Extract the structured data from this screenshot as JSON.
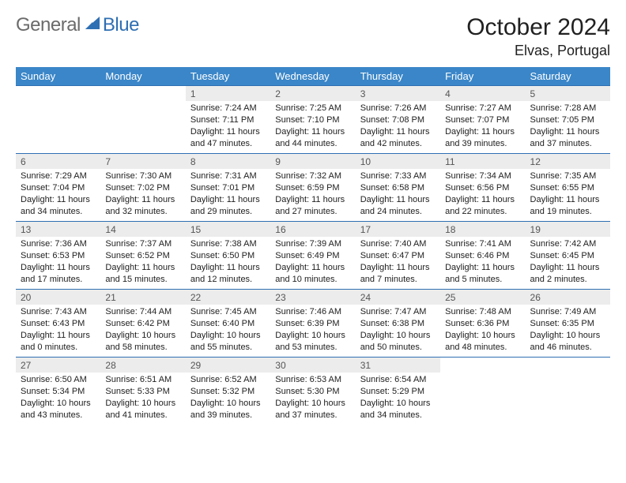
{
  "logo": {
    "text_general": "General",
    "text_blue": "Blue"
  },
  "title": "October 2024",
  "location": "Elvas, Portugal",
  "header_bg": "#3a86c8",
  "header_fg": "#ffffff",
  "row_border": "#2f6fb3",
  "daynum_bg": "#ececec",
  "columns": [
    "Sunday",
    "Monday",
    "Tuesday",
    "Wednesday",
    "Thursday",
    "Friday",
    "Saturday"
  ],
  "weeks": [
    [
      null,
      null,
      {
        "n": "1",
        "sunrise": "7:24 AM",
        "sunset": "7:11 PM",
        "daylight": "11 hours and 47 minutes."
      },
      {
        "n": "2",
        "sunrise": "7:25 AM",
        "sunset": "7:10 PM",
        "daylight": "11 hours and 44 minutes."
      },
      {
        "n": "3",
        "sunrise": "7:26 AM",
        "sunset": "7:08 PM",
        "daylight": "11 hours and 42 minutes."
      },
      {
        "n": "4",
        "sunrise": "7:27 AM",
        "sunset": "7:07 PM",
        "daylight": "11 hours and 39 minutes."
      },
      {
        "n": "5",
        "sunrise": "7:28 AM",
        "sunset": "7:05 PM",
        "daylight": "11 hours and 37 minutes."
      }
    ],
    [
      {
        "n": "6",
        "sunrise": "7:29 AM",
        "sunset": "7:04 PM",
        "daylight": "11 hours and 34 minutes."
      },
      {
        "n": "7",
        "sunrise": "7:30 AM",
        "sunset": "7:02 PM",
        "daylight": "11 hours and 32 minutes."
      },
      {
        "n": "8",
        "sunrise": "7:31 AM",
        "sunset": "7:01 PM",
        "daylight": "11 hours and 29 minutes."
      },
      {
        "n": "9",
        "sunrise": "7:32 AM",
        "sunset": "6:59 PM",
        "daylight": "11 hours and 27 minutes."
      },
      {
        "n": "10",
        "sunrise": "7:33 AM",
        "sunset": "6:58 PM",
        "daylight": "11 hours and 24 minutes."
      },
      {
        "n": "11",
        "sunrise": "7:34 AM",
        "sunset": "6:56 PM",
        "daylight": "11 hours and 22 minutes."
      },
      {
        "n": "12",
        "sunrise": "7:35 AM",
        "sunset": "6:55 PM",
        "daylight": "11 hours and 19 minutes."
      }
    ],
    [
      {
        "n": "13",
        "sunrise": "7:36 AM",
        "sunset": "6:53 PM",
        "daylight": "11 hours and 17 minutes."
      },
      {
        "n": "14",
        "sunrise": "7:37 AM",
        "sunset": "6:52 PM",
        "daylight": "11 hours and 15 minutes."
      },
      {
        "n": "15",
        "sunrise": "7:38 AM",
        "sunset": "6:50 PM",
        "daylight": "11 hours and 12 minutes."
      },
      {
        "n": "16",
        "sunrise": "7:39 AM",
        "sunset": "6:49 PM",
        "daylight": "11 hours and 10 minutes."
      },
      {
        "n": "17",
        "sunrise": "7:40 AM",
        "sunset": "6:47 PM",
        "daylight": "11 hours and 7 minutes."
      },
      {
        "n": "18",
        "sunrise": "7:41 AM",
        "sunset": "6:46 PM",
        "daylight": "11 hours and 5 minutes."
      },
      {
        "n": "19",
        "sunrise": "7:42 AM",
        "sunset": "6:45 PM",
        "daylight": "11 hours and 2 minutes."
      }
    ],
    [
      {
        "n": "20",
        "sunrise": "7:43 AM",
        "sunset": "6:43 PM",
        "daylight": "11 hours and 0 minutes."
      },
      {
        "n": "21",
        "sunrise": "7:44 AM",
        "sunset": "6:42 PM",
        "daylight": "10 hours and 58 minutes."
      },
      {
        "n": "22",
        "sunrise": "7:45 AM",
        "sunset": "6:40 PM",
        "daylight": "10 hours and 55 minutes."
      },
      {
        "n": "23",
        "sunrise": "7:46 AM",
        "sunset": "6:39 PM",
        "daylight": "10 hours and 53 minutes."
      },
      {
        "n": "24",
        "sunrise": "7:47 AM",
        "sunset": "6:38 PM",
        "daylight": "10 hours and 50 minutes."
      },
      {
        "n": "25",
        "sunrise": "7:48 AM",
        "sunset": "6:36 PM",
        "daylight": "10 hours and 48 minutes."
      },
      {
        "n": "26",
        "sunrise": "7:49 AM",
        "sunset": "6:35 PM",
        "daylight": "10 hours and 46 minutes."
      }
    ],
    [
      {
        "n": "27",
        "sunrise": "6:50 AM",
        "sunset": "5:34 PM",
        "daylight": "10 hours and 43 minutes."
      },
      {
        "n": "28",
        "sunrise": "6:51 AM",
        "sunset": "5:33 PM",
        "daylight": "10 hours and 41 minutes."
      },
      {
        "n": "29",
        "sunrise": "6:52 AM",
        "sunset": "5:32 PM",
        "daylight": "10 hours and 39 minutes."
      },
      {
        "n": "30",
        "sunrise": "6:53 AM",
        "sunset": "5:30 PM",
        "daylight": "10 hours and 37 minutes."
      },
      {
        "n": "31",
        "sunrise": "6:54 AM",
        "sunset": "5:29 PM",
        "daylight": "10 hours and 34 minutes."
      },
      null,
      null
    ]
  ],
  "labels": {
    "sunrise": "Sunrise:",
    "sunset": "Sunset:",
    "daylight": "Daylight:"
  }
}
